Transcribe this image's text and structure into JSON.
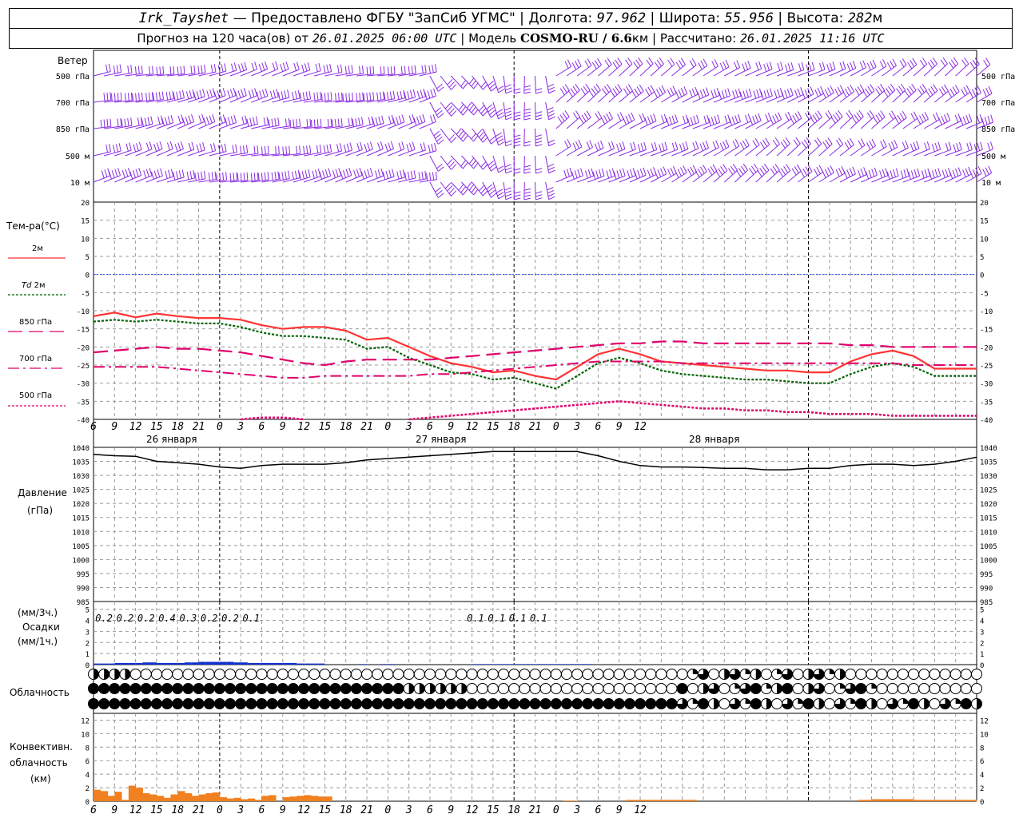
{
  "header": {
    "station": "Irk_Tayshet",
    "provider": "— Предоставлено ФГБУ \"ЗапСиб УГМС\" |",
    "lon_label": "Долгота:",
    "lon": "97.962",
    "lat_label": "| Широта:",
    "lat": "55.956",
    "alt_label": "| Высота:",
    "alt": "282",
    "alt_unit": "м",
    "forecast_prefix": "Прогноз на 120 часа(ов) от",
    "forecast_from": "26.01.2025 06:00 UTC",
    "model_label": "| Модель",
    "model": "COSMO-RU / 6.6",
    "model_unit": "км",
    "calc_label": "| Рассчитано:",
    "calc": "26.01.2025 11:16 UTC"
  },
  "labels": {
    "wind": "Ветер",
    "wind_levels": [
      "500 гПа",
      "700 гПа",
      "850 гПа",
      "500 м",
      "10  м"
    ],
    "temp_title": "Тем-ра(°С)",
    "t2m": "2м",
    "td": "Td",
    "td2m": "2м",
    "t850": "850 гПа",
    "t700": "700 гПа",
    "t500": "500 гПа",
    "pressure": "Давление",
    "pressure_unit": "(гПа)",
    "precip3": "(мм/3ч.)",
    "precip": "Осадки",
    "precip1": "(мм/1ч.)",
    "cloud": "Облачность",
    "conv1": "Конвективн.",
    "conv2": "облачность",
    "conv3": "(км)",
    "days": [
      "26 января",
      "27 января",
      "28 января"
    ]
  },
  "colors": {
    "wind": "#8a2be2",
    "t2m": "#ff3333",
    "td": "#006400",
    "t850": "#e0006a",
    "t700": "#e0006a",
    "t500": "#e0006a",
    "zero": "#3050ff",
    "pressure": "#000000",
    "precip": "#1030d0",
    "conv": "#f08020",
    "grid": "#999999"
  },
  "chart_data": [
    {
      "type": "line",
      "panel": "temperature",
      "title": "Тем-ра(°С)",
      "x_hours_from_start": [
        0,
        3,
        6,
        9,
        12,
        15,
        18,
        21,
        24,
        27,
        30,
        33,
        36,
        39,
        42,
        45,
        48,
        51,
        54,
        57,
        60,
        63,
        66,
        69,
        72,
        75,
        78,
        81,
        84,
        87,
        90,
        93,
        96,
        99,
        102,
        105,
        108,
        111,
        114,
        117,
        120,
        123,
        126
      ],
      "x_tick_labels": [
        "6",
        "9",
        "12",
        "15",
        "18",
        "21",
        "0",
        "3",
        "6",
        "9",
        "12",
        "15",
        "18",
        "21",
        "0",
        "3",
        "6",
        "9",
        "12",
        "15",
        "18",
        "21",
        "0",
        "3",
        "6",
        "9",
        "12"
      ],
      "ylim": [
        -40,
        20
      ],
      "yticks": [
        20,
        15,
        10,
        5,
        0,
        -5,
        -10,
        -15,
        -20,
        -25,
        -30,
        -35,
        -40
      ],
      "series": [
        {
          "name": "2м",
          "values": [
            -11.5,
            -10.5,
            -11.8,
            -10.8,
            -11.5,
            -12.0,
            -12.0,
            -12.5,
            -14.0,
            -15.0,
            -14.5,
            -14.5,
            -15.5,
            -18,
            -17.5,
            -20,
            -22.5,
            -24.5,
            -25.5,
            -27,
            -26.5,
            -28,
            -29,
            -25.5,
            -22,
            -20.5,
            -22,
            -24,
            -24.5,
            -25,
            -25.5,
            -26,
            -26.5,
            -26.5,
            -27,
            -27,
            -24,
            -22,
            -21,
            -22.5,
            -26,
            -26,
            -26
          ]
        },
        {
          "name": "Td 2м",
          "values": [
            -13,
            -12.5,
            -13,
            -12.5,
            -13,
            -13.5,
            -13.5,
            -14.5,
            -16,
            -17,
            -17,
            -17.5,
            -18,
            -20.5,
            -20,
            -23,
            -25,
            -27,
            -27.5,
            -29,
            -28.5,
            -30,
            -31.5,
            -28,
            -24.5,
            -23,
            -24.5,
            -26.5,
            -27.5,
            -28,
            -28.5,
            -29,
            -29,
            -29.5,
            -30,
            -30,
            -27.5,
            -25.5,
            -24.5,
            -25.5,
            -28,
            -28,
            -28
          ]
        },
        {
          "name": "850 гПа",
          "values": [
            -21.5,
            -21,
            -20.5,
            -20,
            -20.5,
            -20.5,
            -21,
            -21.5,
            -22.5,
            -23.5,
            -24.5,
            -25,
            -24,
            -23.5,
            -23.5,
            -23.5,
            -23.5,
            -23,
            -22.5,
            -22,
            -21.5,
            -21,
            -20.5,
            -20,
            -19.5,
            -19,
            -19,
            -18.5,
            -18.5,
            -19,
            -19,
            -19,
            -19,
            -19,
            -19,
            -19,
            -19.5,
            -19.5,
            -20,
            -20,
            -20,
            -20,
            -20
          ]
        },
        {
          "name": "700 гПа",
          "values": [
            -25.5,
            -25.5,
            -25.5,
            -25.5,
            -26,
            -26.5,
            -27,
            -27.5,
            -28,
            -28.5,
            -28.5,
            -28,
            -28,
            -28,
            -28,
            -28,
            -27.5,
            -27.5,
            -27,
            -26.5,
            -26,
            -25.5,
            -25,
            -24.5,
            -24,
            -24,
            -24,
            -24,
            -24.5,
            -24.5,
            -24.5,
            -24.5,
            -24.5,
            -24.5,
            -24.5,
            -24.5,
            -24.5,
            -24.5,
            -24.5,
            -25,
            -25,
            -25,
            -25
          ]
        },
        {
          "name": "500 гПа",
          "values": [
            null,
            null,
            null,
            null,
            null,
            null,
            null,
            -40,
            -39.5,
            -39.5,
            -40,
            null,
            null,
            null,
            null,
            -40,
            -39.5,
            -39,
            -38.5,
            -38,
            -37.5,
            -37,
            -36.5,
            -36,
            -35.5,
            -35,
            -35.5,
            -36,
            -36.5,
            -37,
            -37,
            -37.5,
            -37.5,
            -38,
            -38,
            -38.5,
            -38.5,
            -38.5,
            -39,
            -39,
            -39,
            -39,
            -39
          ]
        }
      ]
    },
    {
      "type": "line",
      "panel": "pressure",
      "title": "Давление",
      "ylabel": "(гПа)",
      "ylim": [
        985,
        1040
      ],
      "yticks": [
        1040,
        1035,
        1030,
        1025,
        1020,
        1015,
        1010,
        1005,
        1000,
        995,
        990,
        985
      ],
      "series": [
        {
          "name": "pressure",
          "values": [
            1037.5,
            1037,
            1036.8,
            1035,
            1034.5,
            1034,
            1033,
            1032.5,
            1033.5,
            1034,
            1034,
            1034,
            1034.5,
            1035.5,
            1036,
            1036.5,
            1037,
            1037.5,
            1038,
            1038.5,
            1038.5,
            1038.5,
            1038.5,
            1038.5,
            1037,
            1035,
            1033.5,
            1033,
            1033,
            1032.8,
            1032.5,
            1032.5,
            1032,
            1032,
            1032.5,
            1032.5,
            1033.5,
            1034,
            1034,
            1033.5,
            1034,
            1035,
            1036.5
          ]
        }
      ]
    },
    {
      "type": "bar",
      "panel": "precipitation",
      "title": "Осадки",
      "ylim": [
        0,
        5
      ],
      "yticks": [
        5,
        4,
        3,
        2,
        1,
        0
      ],
      "totals_3h_labels": [
        "0.2",
        "0.2",
        "0.2",
        "0.4",
        "0.3",
        "0.2",
        "0.2",
        "0.1",
        "0.1",
        "0.1",
        "0.1",
        "0.1"
      ],
      "totals_3h_hours": [
        1.5,
        4.5,
        7.5,
        10.5,
        13.5,
        16.5,
        19.5,
        22.5,
        54.5,
        57.5,
        60.5,
        63.5
      ],
      "hourly_values": [
        0.1,
        0.1,
        0.1,
        0.15,
        0.15,
        0.15,
        0.15,
        0.2,
        0.2,
        0.15,
        0.15,
        0.15,
        0.15,
        0.2,
        0.2,
        0.25,
        0.25,
        0.25,
        0.25,
        0.25,
        0.2,
        0.2,
        0.15,
        0.15,
        0.15,
        0.15,
        0.15,
        0.15,
        0.15,
        0.1,
        0.1,
        0.1,
        0.1,
        0.0,
        0.0,
        0.0,
        0.0,
        0.0,
        0.05,
        0.0,
        0.0,
        0.05,
        0.05,
        0.0,
        0.0,
        0.0,
        0.0,
        0.0,
        0.0,
        0.0,
        0.0,
        0.0,
        0.0,
        0.0,
        0.05,
        0.05,
        0.05,
        0.05,
        0.05,
        0.05,
        0.05,
        0.05,
        0.05,
        0.05,
        0.05,
        0.05,
        0.05,
        0.05,
        0.05,
        0.05,
        0.05,
        0.0
      ]
    },
    {
      "type": "bar",
      "panel": "convective_cloud",
      "title": "Конвективн. облачность",
      "ylabel": "(км)",
      "ylim": [
        0,
        13
      ],
      "yticks": [
        12,
        10,
        8,
        6,
        4,
        2,
        0
      ],
      "values": [
        1.7,
        1.5,
        0.8,
        1.4,
        0.2,
        2.3,
        2.0,
        1.2,
        1.0,
        0.8,
        0.5,
        1.0,
        1.5,
        1.2,
        0.8,
        1.0,
        1.2,
        1.3,
        0.6,
        0.4,
        0.5,
        0.3,
        0.4,
        0.2,
        0.8,
        0.9,
        0,
        0.6,
        0.7,
        0.8,
        0.9,
        0.8,
        0.7,
        0.7,
        0,
        0,
        0,
        0,
        0,
        0,
        0,
        0,
        0,
        0,
        0,
        0,
        0,
        0,
        0,
        0,
        0,
        0,
        0,
        0,
        0,
        0,
        0,
        0,
        0,
        0,
        0,
        0,
        0,
        0,
        0,
        0,
        0,
        0.1,
        0.1,
        0,
        0,
        0,
        0,
        0,
        0,
        0,
        0.2,
        0.2,
        0.2,
        0.2,
        0.2,
        0.2,
        0.2,
        0.2,
        0.2,
        0.2,
        0,
        0,
        0,
        0,
        0,
        0,
        0,
        0,
        0,
        0,
        0,
        0,
        0,
        0,
        0,
        0,
        0,
        0,
        0,
        0,
        0,
        0,
        0,
        0.2,
        0.2,
        0.3,
        0.3,
        0.3,
        0.3,
        0.3,
        0.3,
        0.2,
        0.2,
        0.2,
        0.2,
        0.2,
        0.2,
        0.2,
        0.2,
        0.2
      ]
    }
  ]
}
